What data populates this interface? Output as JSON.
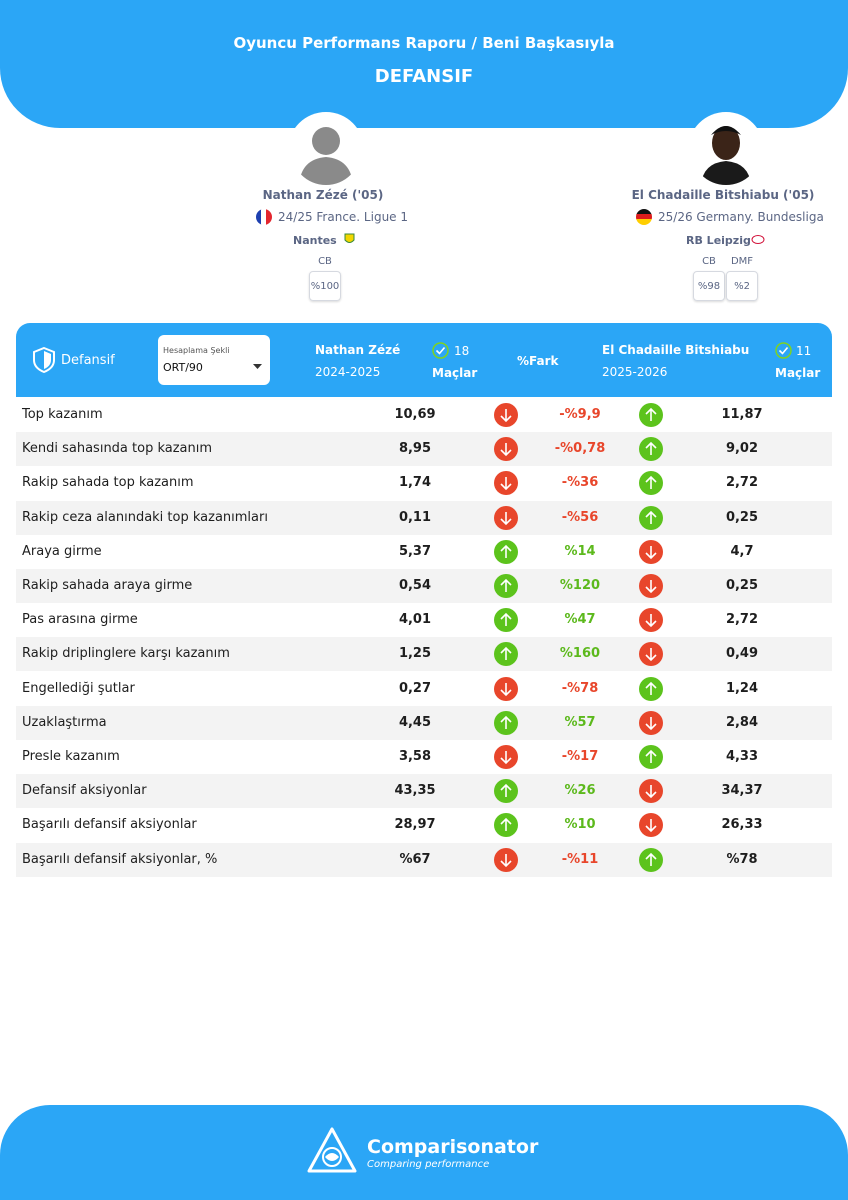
{
  "header": {
    "title": "Oyuncu Performans Raporu / Beni Başkasıyla",
    "subtitle": "DEFANSIF"
  },
  "players": [
    {
      "name": "Nathan Zézé ('05)",
      "season": "24/25 France. Ligue 1",
      "team": "Nantes",
      "positions": [
        "CB"
      ],
      "position_shares": [
        "%100"
      ]
    },
    {
      "name": "El Chadaille Bitshiabu ('05)",
      "season": "25/26 Germany. Bundesliga",
      "team": "RB Leipzig",
      "positions": [
        "CB",
        "DMF"
      ],
      "position_shares": [
        "%98",
        "%2"
      ]
    }
  ],
  "table": {
    "section": "Defansif",
    "calc_label": "Hesaplama Şekli",
    "calc_value": "ORT/90",
    "player1": {
      "name": "Nathan Zézé",
      "period": "2024-2025",
      "matches": "18",
      "matches_label": "Maçlar"
    },
    "diff_header": "%Fark",
    "player2": {
      "name": "El Chadaille Bitshiabu",
      "period": "2025-2026",
      "matches": "11",
      "matches_label": "Maçlar"
    },
    "rows": [
      {
        "label": "Top kazanım",
        "player1": "10,69",
        "diff": "-%9,9",
        "player2": "11,87",
        "player1_trend": "down"
      },
      {
        "label": "Kendi sahasında top kazanım",
        "player1": "8,95",
        "diff": "-%0,78",
        "player2": "9,02",
        "player1_trend": "down"
      },
      {
        "label": "Rakip sahada top kazanım",
        "player1": "1,74",
        "diff": "-%36",
        "player2": "2,72",
        "player1_trend": "down"
      },
      {
        "label": "Rakip ceza alanındaki top kazanımları",
        "player1": "0,11",
        "diff": "-%56",
        "player2": "0,25",
        "player1_trend": "down"
      },
      {
        "label": "Araya girme",
        "player1": "5,37",
        "diff": "%14",
        "player2": "4,7",
        "player1_trend": "up"
      },
      {
        "label": "Rakip sahada araya girme",
        "player1": "0,54",
        "diff": "%120",
        "player2": "0,25",
        "player1_trend": "up"
      },
      {
        "label": "Pas arasına girme",
        "player1": "4,01",
        "diff": "%47",
        "player2": "2,72",
        "player1_trend": "up"
      },
      {
        "label": "Rakip driplinglere karşı kazanım",
        "player1": "1,25",
        "diff": "%160",
        "player2": "0,49",
        "player1_trend": "up"
      },
      {
        "label": "Engellediği şutlar",
        "player1": "0,27",
        "diff": "-%78",
        "player2": "1,24",
        "player1_trend": "down"
      },
      {
        "label": "Uzaklaştırma",
        "player1": "4,45",
        "diff": "%57",
        "player2": "2,84",
        "player1_trend": "up"
      },
      {
        "label": "Presle kazanım",
        "player1": "3,58",
        "diff": "-%17",
        "player2": "4,33",
        "player1_trend": "down"
      },
      {
        "label": "Defansif aksiyonlar",
        "player1": "43,35",
        "diff": "%26",
        "player2": "34,37",
        "player1_trend": "up"
      },
      {
        "label": "Başarılı defansif aksiyonlar",
        "player1": "28,97",
        "diff": "%10",
        "player2": "26,33",
        "player1_trend": "up"
      },
      {
        "label": "Başarılı defansif aksiyonlar, %",
        "player1": "%67",
        "diff": "-%11",
        "player2": "%78",
        "player1_trend": "down"
      }
    ]
  },
  "footer": {
    "brand": "Comparisonator",
    "tagline": "Comparing performance"
  }
}
